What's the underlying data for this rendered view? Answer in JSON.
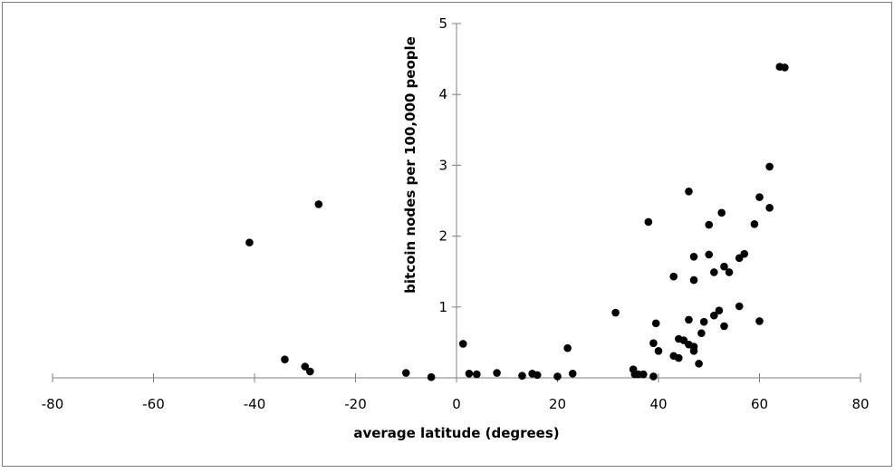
{
  "chart_data": {
    "type": "scatter",
    "title": "",
    "xlabel": "average latitude (degrees)",
    "ylabel": "bitcoin nodes per 100,000 people",
    "xlim": [
      -80,
      80
    ],
    "ylim": [
      0,
      5
    ],
    "x_ticks": [
      "-80",
      "-60",
      "-40",
      "-20",
      "0",
      "20",
      "40",
      "60",
      "80"
    ],
    "y_ticks": [
      "1",
      "2",
      "3",
      "4",
      "5"
    ],
    "grid": false,
    "legend": "none",
    "marker_color": "#000000",
    "series": [
      {
        "points": [
          [
            -41,
            1.91
          ],
          [
            -27.3,
            2.45
          ],
          [
            -34,
            0.26
          ],
          [
            -30,
            0.16
          ],
          [
            -29,
            0.09
          ],
          [
            -10,
            0.07
          ],
          [
            -5,
            0.01
          ],
          [
            1.3,
            0.48
          ],
          [
            2.5,
            0.06
          ],
          [
            4,
            0.05
          ],
          [
            8,
            0.07
          ],
          [
            13,
            0.03
          ],
          [
            15,
            0.06
          ],
          [
            16,
            0.04
          ],
          [
            20,
            0.02
          ],
          [
            22,
            0.42
          ],
          [
            23,
            0.06
          ],
          [
            31.5,
            0.92
          ],
          [
            35,
            0.12
          ],
          [
            35.3,
            0.05
          ],
          [
            36,
            0.05
          ],
          [
            37,
            0.05
          ],
          [
            38,
            2.2
          ],
          [
            39,
            0.49
          ],
          [
            39,
            0.02
          ],
          [
            39.5,
            0.77
          ],
          [
            40,
            0.38
          ],
          [
            43,
            1.43
          ],
          [
            43,
            0.31
          ],
          [
            44,
            0.55
          ],
          [
            44,
            0.28
          ],
          [
            45,
            0.53
          ],
          [
            46,
            2.63
          ],
          [
            46,
            0.82
          ],
          [
            46,
            0.47
          ],
          [
            47,
            1.71
          ],
          [
            47,
            1.38
          ],
          [
            47,
            0.44
          ],
          [
            47,
            0.38
          ],
          [
            48,
            0.2
          ],
          [
            48.5,
            0.63
          ],
          [
            49,
            0.79
          ],
          [
            50,
            2.16
          ],
          [
            50,
            1.74
          ],
          [
            51,
            1.49
          ],
          [
            51,
            0.88
          ],
          [
            52,
            0.95
          ],
          [
            52.5,
            2.33
          ],
          [
            53,
            1.57
          ],
          [
            53,
            0.73
          ],
          [
            54,
            1.49
          ],
          [
            56,
            1.69
          ],
          [
            56,
            1.01
          ],
          [
            57,
            1.75
          ],
          [
            59,
            2.17
          ],
          [
            60,
            2.55
          ],
          [
            60,
            0.8
          ],
          [
            62,
            2.98
          ],
          [
            62,
            2.4
          ],
          [
            64,
            4.39
          ],
          [
            65,
            4.38
          ]
        ]
      }
    ]
  }
}
